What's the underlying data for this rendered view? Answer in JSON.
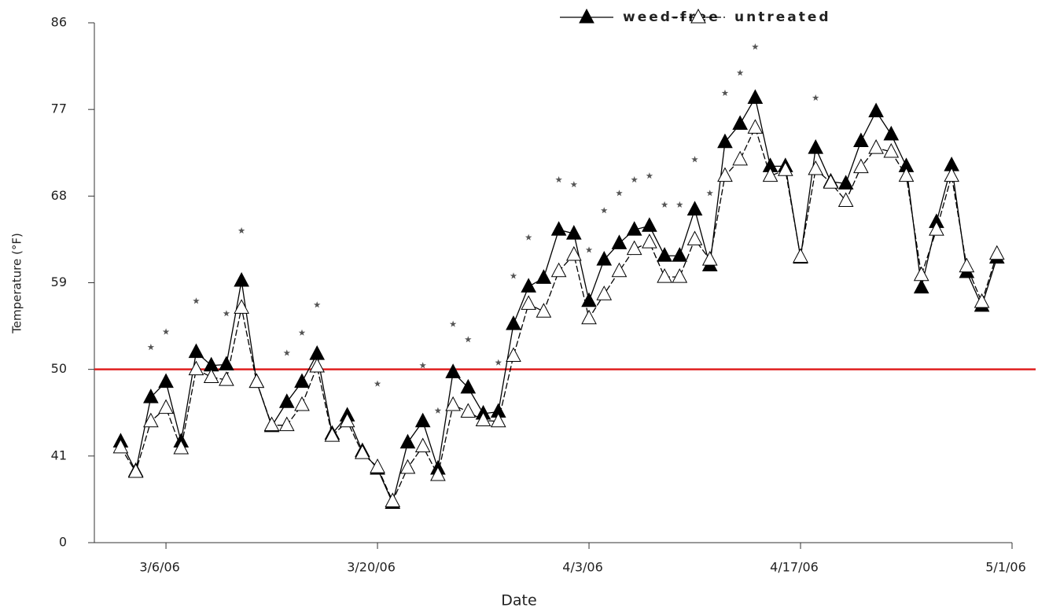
{
  "chart_data": {
    "type": "line",
    "xlabel": "Date",
    "ylabel": "Temperature (°F)",
    "x": [
      "3/3/06",
      "3/4/06",
      "3/5/06",
      "3/6/06",
      "3/7/06",
      "3/8/06",
      "3/9/06",
      "3/10/06",
      "3/11/06",
      "3/12/06",
      "3/13/06",
      "3/14/06",
      "3/15/06",
      "3/16/06",
      "3/17/06",
      "3/18/06",
      "3/19/06",
      "3/20/06",
      "3/21/06",
      "3/22/06",
      "3/23/06",
      "3/24/06",
      "3/25/06",
      "3/26/06",
      "3/27/06",
      "3/28/06",
      "3/29/06",
      "3/30/06",
      "3/31/06",
      "4/1/06",
      "4/2/06",
      "4/3/06",
      "4/4/06",
      "4/5/06",
      "4/6/06",
      "4/7/06",
      "4/8/06",
      "4/9/06",
      "4/10/06",
      "4/11/06",
      "4/12/06",
      "4/13/06",
      "4/14/06",
      "4/15/06",
      "4/16/06",
      "4/17/06",
      "4/18/06",
      "4/19/06",
      "4/20/06",
      "4/21/06",
      "4/22/06",
      "4/23/06",
      "4/24/06",
      "4/25/06",
      "4/26/06",
      "4/27/06",
      "4/28/06",
      "4/29/06",
      "4/30/06"
    ],
    "series": [
      {
        "name": "weed-free",
        "color": "#000000",
        "marker": "triangle-filled",
        "line": true,
        "dash": false,
        "values": [
          42.5,
          33.9,
          47.1,
          48.7,
          42.5,
          51.8,
          50.4,
          50.5,
          59.2,
          48.7,
          44.1,
          46.6,
          48.7,
          51.6,
          43.3,
          45.2,
          41.5,
          35.0,
          18.8,
          42.4,
          44.6,
          35.0,
          49.7,
          48.1,
          45.4,
          45.6,
          54.7,
          58.6,
          59.5,
          64.5,
          64.1,
          57.1,
          61.4,
          63.1,
          64.5,
          64.9,
          61.8,
          61.8,
          66.6,
          60.8,
          73.6,
          75.5,
          78.2,
          71.1,
          71.1,
          61.6,
          73.0,
          69.5,
          69.3,
          73.7,
          76.8,
          74.4,
          71.1,
          58.5,
          65.3,
          71.2,
          60.1,
          56.6,
          61.6
        ]
      },
      {
        "name": "untreated",
        "color": "#000000",
        "marker": "triangle-open",
        "line": true,
        "dash": true,
        "values": [
          41.9,
          33.5,
          44.6,
          46.0,
          41.8,
          50.0,
          49.2,
          48.9,
          56.4,
          48.7,
          44.2,
          44.2,
          46.3,
          50.3,
          43.1,
          44.6,
          41.3,
          35.7,
          19.6,
          35.4,
          42.0,
          32.0,
          46.3,
          45.6,
          44.7,
          44.6,
          51.4,
          56.8,
          56.0,
          60.2,
          61.9,
          55.3,
          57.8,
          60.2,
          62.5,
          63.2,
          59.6,
          59.6,
          63.5,
          61.4,
          70.1,
          71.8,
          75.1,
          70.1,
          70.7,
          61.7,
          70.8,
          69.4,
          67.5,
          71.0,
          73.0,
          72.6,
          70.1,
          59.8,
          64.5,
          70.1,
          60.7,
          57.0,
          62.0
        ]
      },
      {
        "color": "#555555",
        "marker": "star",
        "line": false,
        "dash": false,
        "values": [
          null,
          null,
          52.3,
          53.9,
          null,
          57.1,
          null,
          55.8,
          64.4,
          null,
          null,
          51.7,
          53.8,
          56.7,
          null,
          null,
          null,
          48.5,
          null,
          null,
          50.4,
          45.7,
          54.7,
          53.1,
          null,
          50.7,
          59.7,
          63.7,
          null,
          69.7,
          69.2,
          62.4,
          66.5,
          68.3,
          69.7,
          70.1,
          67.1,
          67.1,
          71.8,
          68.3,
          78.7,
          80.8,
          83.5,
          null,
          null,
          null,
          78.2,
          null,
          null,
          null,
          null,
          null,
          null,
          null,
          null,
          null,
          null,
          null,
          null
        ]
      }
    ],
    "xlim": [
      "3/1/06",
      "5/1/06"
    ],
    "xticks": [
      "3/6/06",
      "3/20/06",
      "4/3/06",
      "4/17/06",
      "5/1/06"
    ],
    "ylim": [
      0,
      86
    ],
    "yticks": [
      0,
      41,
      50,
      59,
      68,
      77,
      86
    ],
    "y_axis_break": true,
    "reference_line": {
      "value": 50,
      "color": "#e02020"
    },
    "legend": "top-right"
  }
}
